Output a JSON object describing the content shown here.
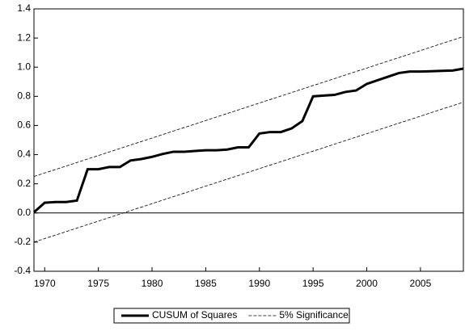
{
  "chart_data": {
    "type": "line",
    "x": [
      1969,
      1970,
      1971,
      1972,
      1973,
      1974,
      1975,
      1976,
      1977,
      1978,
      1979,
      1980,
      1981,
      1982,
      1983,
      1984,
      1985,
      1986,
      1987,
      1988,
      1989,
      1990,
      1991,
      1992,
      1993,
      1994,
      1995,
      1996,
      1997,
      1998,
      1999,
      2000,
      2001,
      2002,
      2003,
      2004,
      2005,
      2006,
      2007,
      2008,
      2009
    ],
    "series": [
      {
        "name": "CUSUM of Squares",
        "color": "#000000",
        "style": "solid",
        "values": [
          0.005,
          0.07,
          0.075,
          0.075,
          0.085,
          0.3,
          0.3,
          0.315,
          0.315,
          0.36,
          0.37,
          0.385,
          0.405,
          0.42,
          0.42,
          0.425,
          0.43,
          0.43,
          0.435,
          0.45,
          0.45,
          0.545,
          0.555,
          0.555,
          0.58,
          0.63,
          0.8,
          0.805,
          0.81,
          0.83,
          0.84,
          0.885,
          0.91,
          0.935,
          0.96,
          0.97,
          0.97,
          0.972,
          0.975,
          0.977,
          0.99
        ]
      },
      {
        "name": "5% Significance",
        "color": "#000000",
        "style": "dashed",
        "x": [
          1969,
          2009
        ],
        "upper": [
          0.25,
          1.21
        ],
        "lower": [
          -0.2,
          0.76
        ]
      }
    ],
    "xlim": [
      1969,
      2009
    ],
    "xticks": [
      1970,
      1975,
      1980,
      1985,
      1990,
      1995,
      2000,
      2005
    ],
    "ylim": [
      -0.4,
      1.4
    ],
    "yticks": [
      {
        "value": -0.4,
        "label": "-0.4"
      },
      {
        "value": -0.2,
        "label": "-0.2"
      },
      {
        "value": 0,
        "label": "0.0"
      },
      {
        "value": 0.2,
        "label": "0.2"
      },
      {
        "value": 0.4,
        "label": "0.4"
      },
      {
        "value": 0.6,
        "label": "0.6"
      },
      {
        "value": 0.8,
        "label": "0.8"
      },
      {
        "value": 1,
        "label": "1.0"
      },
      {
        "value": 1.2,
        "label": "1.2"
      },
      {
        "value": 1.4,
        "label": "1.4"
      }
    ],
    "legend": "bottom"
  }
}
